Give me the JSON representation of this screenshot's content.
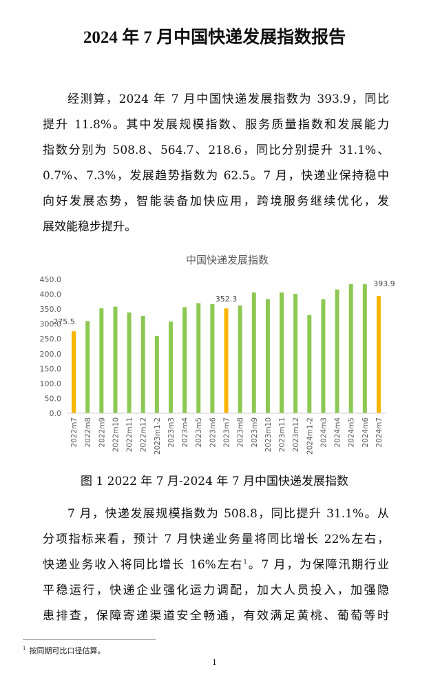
{
  "title": "2024 年 7 月中国快递发展指数报告",
  "body": {
    "p1": [
      "经测算，2024 年 7 月中国快递发展指数为 393.9，同比",
      "提升 11.8%。其中发展规模指数、服务质量指数和发展能力",
      "指数分别为 508.8、564.7、218.6，同比分别提升 31.1%、",
      "0.7%、7.3%，发展趋势指数为 62.5。7 月，快递业保持稳中",
      "向好发展态势，智能装备加快应用，跨境服务继续优化，发",
      "展效能稳步提升。"
    ],
    "p2": [
      "7 月，快递发展规模指数为 508.8，同比提升 31.1%。从",
      "分项指标来看，预计 7 月快递业务量将同比增长 22%左右，",
      "快递业务收入将同比增长 16%左右",
      "。7 月，为保障汛期行业",
      "平稳运行，快递企业强化运力调配，加大人员投入，加强隐",
      "患排查，保障寄递渠道安全畅通，有效满足黄桃、葡萄等时"
    ],
    "footnote_ref": "1"
  },
  "chart_data": {
    "type": "bar",
    "title": "中国快递发展指数",
    "categories": [
      "2022m7",
      "2022m8",
      "2022m9",
      "2022m10",
      "2022m11",
      "2022m12",
      "2023m1-2",
      "2023m3",
      "2023m4",
      "2023m5",
      "2023m6",
      "2023m7",
      "2023m8",
      "2023m9",
      "2023m10",
      "2023m11",
      "2023m12",
      "2024m1-2",
      "2024m3",
      "2024m4",
      "2024m5",
      "2024m6",
      "2024m7"
    ],
    "values": [
      275.5,
      310,
      352.6,
      358,
      338.7,
      327,
      260,
      308,
      356.5,
      370,
      366.5,
      352.3,
      362,
      406,
      383.5,
      406,
      401,
      329.5,
      383,
      416,
      434,
      433.5,
      393.9
    ],
    "highlighted": [
      "2022m7",
      "2023m7",
      "2024m7"
    ],
    "data_labels": {
      "2022m7": "275.5",
      "2023m7": "352.3",
      "2024m7": "393.9"
    },
    "yticks": [
      "0.0",
      "50.0",
      "100.0",
      "150.0",
      "200.0",
      "250.0",
      "300.0",
      "350.0",
      "400.0",
      "450.0"
    ],
    "ylim": [
      0,
      450
    ],
    "grid": false,
    "colors": {
      "highlight": "#f7b500",
      "normal": "#8dc852",
      "axis": "#d0d0d0",
      "text": "#595959"
    }
  },
  "caption": "图 1  2022 年 7 月-2024 年 7 月中国快递发展指数",
  "footnote": {
    "marker": "1",
    "text": "按同期可比口径估算。"
  },
  "page_number": "1"
}
